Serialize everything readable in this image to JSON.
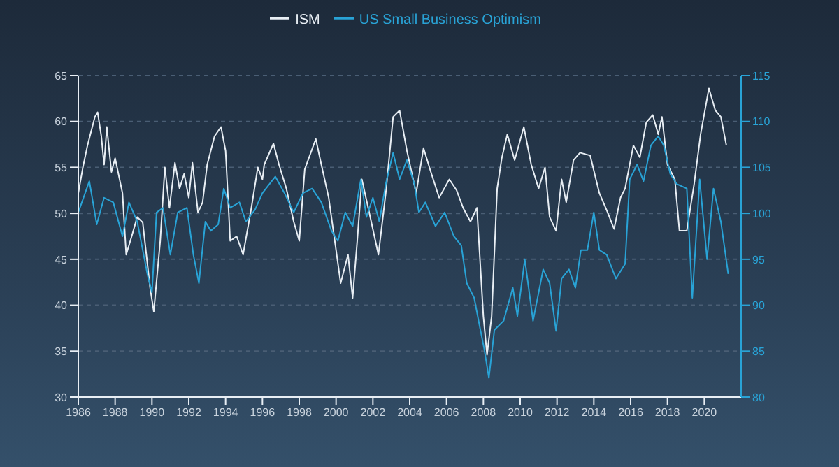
{
  "chart_data": {
    "type": "line",
    "xlim": [
      1986,
      2022
    ],
    "xticks": [
      1986,
      1988,
      1990,
      1992,
      1994,
      1996,
      1998,
      2000,
      2002,
      2004,
      2006,
      2008,
      2010,
      2012,
      2014,
      2016,
      2018,
      2020
    ],
    "ylim": [
      30,
      65
    ],
    "yticks": [
      30,
      35,
      40,
      45,
      50,
      55,
      60,
      65
    ],
    "y2lim": [
      80,
      115
    ],
    "y2ticks": [
      80,
      85,
      90,
      95,
      100,
      105,
      110,
      115
    ],
    "grid": "y",
    "legend": "top",
    "series": [
      {
        "name": "ISM",
        "color": "#e8eef4",
        "x": [
          1986,
          1986.25,
          1986.5,
          1986.9,
          1987.05,
          1987.25,
          1987.4,
          1987.55,
          1987.8,
          1988,
          1988.4,
          1988.6,
          1988.9,
          1989.2,
          1989.5,
          1989.9,
          1990.1,
          1990.45,
          1990.7,
          1990.95,
          1991.25,
          1991.5,
          1991.75,
          1992,
          1992.2,
          1992.5,
          1992.75,
          1993,
          1993.4,
          1993.75,
          1994,
          1994.25,
          1994.6,
          1994.95,
          1995.4,
          1995.75,
          1996,
          1996.1,
          1996.6,
          1996.9,
          1997.3,
          1997.7,
          1998,
          1998.3,
          1998.9,
          1999.2,
          1999.6,
          2000,
          2000.25,
          2000.65,
          2000.9,
          2001.15,
          2001.4,
          2001.8,
          2002.3,
          2002.7,
          2003.1,
          2003.45,
          2003.85,
          2004.35,
          2004.75,
          2005.1,
          2005.6,
          2006.15,
          2006.55,
          2006.9,
          2007.3,
          2007.65,
          2008,
          2008.2,
          2008.45,
          2008.75,
          2009,
          2009.3,
          2009.7,
          2010.2,
          2010.6,
          2011,
          2011.35,
          2011.6,
          2011.95,
          2012.25,
          2012.5,
          2012.9,
          2013.25,
          2013.8,
          2014.3,
          2014.75,
          2015.1,
          2015.45,
          2015.7,
          2016.15,
          2016.5,
          2016.85,
          2017.2,
          2017.5,
          2017.7,
          2018,
          2018.4,
          2018.65,
          2019.05,
          2019.45,
          2019.8,
          2020.25,
          2020.6,
          2020.9,
          2021.2
        ],
        "values": [
          52.2,
          55,
          57.4,
          60.5,
          61,
          58.4,
          55.3,
          59.4,
          54.5,
          56,
          52.2,
          45.5,
          47.5,
          49.6,
          49,
          41.9,
          39.3,
          47,
          55,
          50.6,
          55.5,
          52.7,
          54.3,
          51.7,
          55.5,
          50.1,
          51.2,
          55.3,
          58.4,
          59.4,
          56.8,
          47,
          47.5,
          45.5,
          50.6,
          55,
          53.7,
          55.3,
          57.6,
          55.3,
          52.7,
          49.1,
          47,
          54.8,
          58.1,
          55.3,
          51.7,
          46,
          42.4,
          45.5,
          40.8,
          47,
          53.7,
          50.1,
          45.5,
          52.2,
          60.5,
          61.2,
          56.8,
          52.2,
          57.1,
          54.8,
          51.7,
          53.7,
          52.5,
          50.6,
          49.1,
          50.6,
          38.8,
          34.6,
          38.8,
          52.7,
          56,
          58.6,
          55.8,
          59.4,
          55.3,
          52.7,
          55,
          49.6,
          48.1,
          53.7,
          51.2,
          55.8,
          56.6,
          56.3,
          52.2,
          50.1,
          48.3,
          51.7,
          52.7,
          57.4,
          56.1,
          59.9,
          60.7,
          58.6,
          60.5,
          55.3,
          53.7,
          48.1,
          48.1,
          53.2,
          58.6,
          63.6,
          61.2,
          60.5,
          57.4
        ]
      },
      {
        "name": "US Small Business Optimism",
        "color": "#29a3d6",
        "axis": "y2",
        "x": [
          1986,
          1986.6,
          1987,
          1987.4,
          1987.9,
          1988.4,
          1988.75,
          1989.2,
          1989.75,
          1990,
          1990.25,
          1990.6,
          1991,
          1991.4,
          1991.9,
          1992.25,
          1992.55,
          1992.9,
          1993.2,
          1993.6,
          1993.9,
          1994.25,
          1994.75,
          1995.1,
          1995.6,
          1996,
          1996.7,
          1997.2,
          1997.7,
          1998.2,
          1998.7,
          1999.2,
          1999.75,
          2000.1,
          2000.5,
          2000.9,
          2001.35,
          2001.65,
          2002,
          2002.35,
          2002.7,
          2003.1,
          2003.45,
          2003.85,
          2004.25,
          2004.5,
          2004.85,
          2005.4,
          2005.9,
          2006.4,
          2006.8,
          2007.1,
          2007.5,
          2007.8,
          2008.05,
          2008.3,
          2008.6,
          2009.1,
          2009.6,
          2009.85,
          2010.25,
          2010.7,
          2011.25,
          2011.6,
          2011.95,
          2012.25,
          2012.65,
          2013,
          2013.3,
          2013.65,
          2014,
          2014.3,
          2014.7,
          2015.2,
          2015.7,
          2015.95,
          2016.35,
          2016.7,
          2017.1,
          2017.5,
          2017.8,
          2018.15,
          2018.5,
          2019.05,
          2019.35,
          2019.75,
          2020.15,
          2020.5,
          2020.9,
          2021.3
        ],
        "values": [
          100.1,
          103.5,
          98.8,
          101.7,
          101.2,
          97.5,
          101.2,
          99.1,
          93.4,
          91.4,
          100.1,
          100.6,
          95.5,
          100.1,
          100.6,
          95.5,
          92.4,
          99.1,
          98.1,
          98.8,
          102.7,
          100.6,
          101.2,
          99.1,
          100.4,
          102.2,
          104,
          102.2,
          100.1,
          102.2,
          102.7,
          101.2,
          98.1,
          97,
          100.1,
          98.6,
          103.7,
          99.6,
          101.7,
          99.1,
          103.2,
          106.6,
          103.7,
          105.8,
          103.2,
          100.1,
          101.2,
          98.6,
          100.1,
          97.5,
          96.5,
          92.4,
          90.8,
          87.7,
          85.2,
          82.1,
          87.3,
          88.3,
          91.9,
          88.8,
          95,
          88.3,
          93.9,
          92.4,
          87.2,
          92.9,
          93.9,
          91.9,
          96,
          96,
          100.1,
          96,
          95.5,
          92.9,
          94.5,
          103.7,
          105.3,
          103.5,
          107.4,
          108.4,
          107.4,
          104.3,
          103.2,
          102.7,
          90.8,
          103.7,
          95,
          102.7,
          99.1,
          93.4
        ]
      }
    ]
  }
}
